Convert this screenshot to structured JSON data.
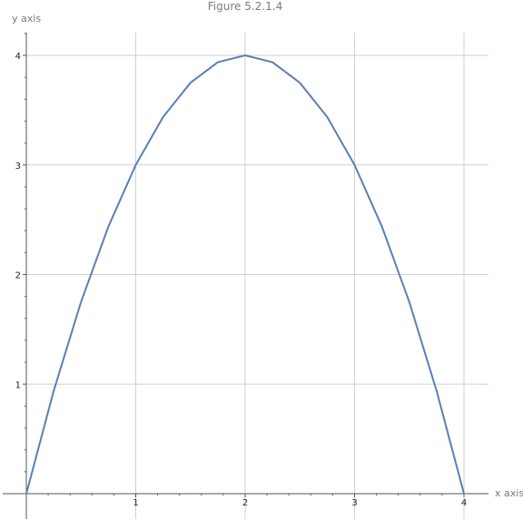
{
  "chart_data": {
    "type": "line",
    "title": "Figure 5.2.1.4",
    "xlabel": "x axis",
    "ylabel": "y axis",
    "xlim": [
      0,
      4
    ],
    "ylim": [
      0,
      4
    ],
    "grid": true,
    "x_ticks": [
      1,
      2,
      3,
      4
    ],
    "x_tick_labels": [
      "1",
      "2",
      "3",
      "4"
    ],
    "y_ticks": [
      1,
      2,
      3,
      4
    ],
    "y_tick_labels": [
      "1",
      "2",
      "3",
      "4"
    ],
    "series": [
      {
        "x": [
          0,
          0.25,
          0.5,
          0.75,
          1,
          1.25,
          1.5,
          1.75,
          2,
          2.25,
          2.5,
          2.75,
          3,
          3.25,
          3.5,
          3.75,
          4
        ],
        "y": [
          0,
          0.9375,
          1.75,
          2.4375,
          3,
          3.4375,
          3.75,
          3.9375,
          4,
          3.9375,
          3.75,
          3.4375,
          3,
          2.4375,
          1.75,
          0.9375,
          0
        ],
        "color": "#5b7fb5"
      }
    ]
  }
}
